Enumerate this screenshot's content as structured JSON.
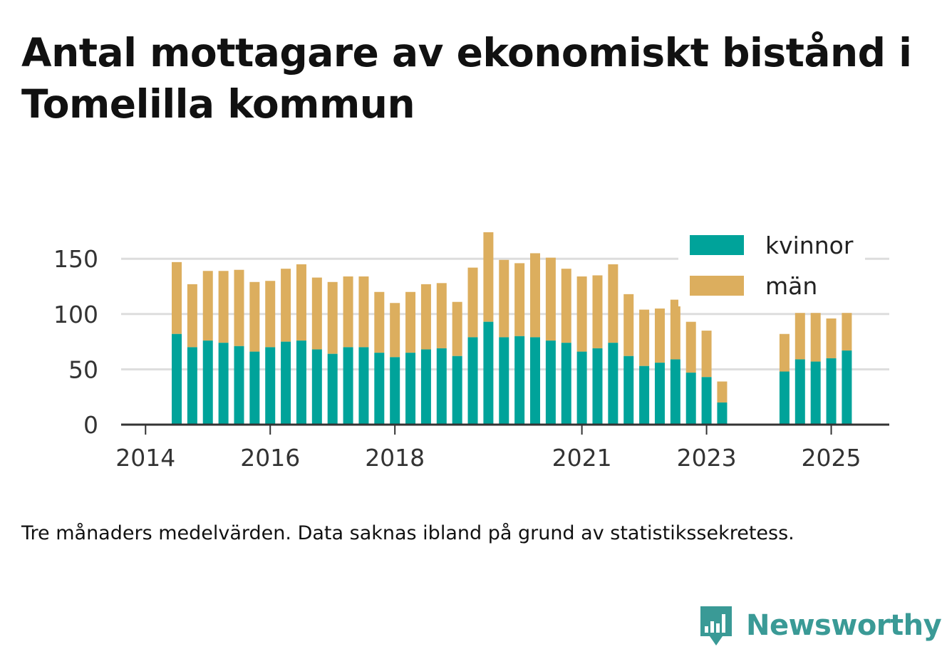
{
  "title": "Antal mottagare av ekonomiskt bistånd i Tomelilla kommun",
  "caption": "Tre månaders medelvärden. Data saknas ibland på grund av statistikssekretess.",
  "brand": {
    "name": "Newsworthy",
    "icon": "newsworthy-logo-icon",
    "color": "#3a9a96"
  },
  "colors": {
    "kvinnor": "#00a39a",
    "man": "#dcae5e",
    "grid": "#dddddd",
    "axis": "#333333"
  },
  "chart_data": {
    "type": "bar",
    "stacked": true,
    "x_tick_labels": [
      "2014",
      "2016",
      "2018",
      "2021",
      "2023",
      "2025"
    ],
    "y_tick_labels": [
      "0",
      "50",
      "100",
      "150"
    ],
    "ylim": [
      0,
      180
    ],
    "grid": true,
    "legend_position": "top-right",
    "categories": [
      "2014 Q2",
      "2014 Q3",
      "2014 Q4",
      "2015 Q1",
      "2015 Q2",
      "2015 Q3",
      "2015 Q4",
      "2016 Q1",
      "2016 Q2",
      "2016 Q3",
      "2016 Q4",
      "2017 Q1",
      "2017 Q2",
      "2017 Q3",
      "2017 Q4",
      "2018 Q1",
      "2018 Q2",
      "2018 Q3",
      "2018 Q4",
      "2019 Q1",
      "2019 Q2",
      "2019 Q3",
      "2019 Q4",
      "2020 Q1",
      "2020 Q2",
      "2020 Q3",
      "2020 Q4",
      "2021 Q1",
      "2021 Q2",
      "2021 Q3",
      "2021 Q4",
      "2022 Q1",
      "2022 Q2",
      "2022 Q3",
      "2022 Q4",
      "2023 Q1",
      "2023 Q2",
      "2023 Q3",
      "2023 Q4",
      "2024 Q1",
      "2024 Q2",
      "2024 Q3",
      "2024 Q4",
      "2025 Q1"
    ],
    "series": [
      {
        "name": "kvinnor",
        "values": [
          82,
          70,
          76,
          74,
          71,
          66,
          70,
          75,
          76,
          68,
          64,
          70,
          70,
          65,
          61,
          65,
          68,
          69,
          62,
          79,
          93,
          79,
          80,
          79,
          76,
          74,
          66,
          69,
          74,
          62,
          53,
          56,
          59,
          47,
          43,
          20,
          null,
          null,
          null,
          48,
          59,
          57,
          60,
          67
        ]
      },
      {
        "name": "män",
        "values": [
          65,
          57,
          63,
          65,
          69,
          63,
          60,
          66,
          69,
          65,
          65,
          64,
          64,
          55,
          49,
          55,
          59,
          59,
          49,
          63,
          81,
          70,
          66,
          76,
          75,
          67,
          68,
          66,
          71,
          56,
          51,
          49,
          54,
          46,
          42,
          19,
          null,
          null,
          null,
          34,
          42,
          44,
          36,
          34
        ]
      }
    ]
  }
}
